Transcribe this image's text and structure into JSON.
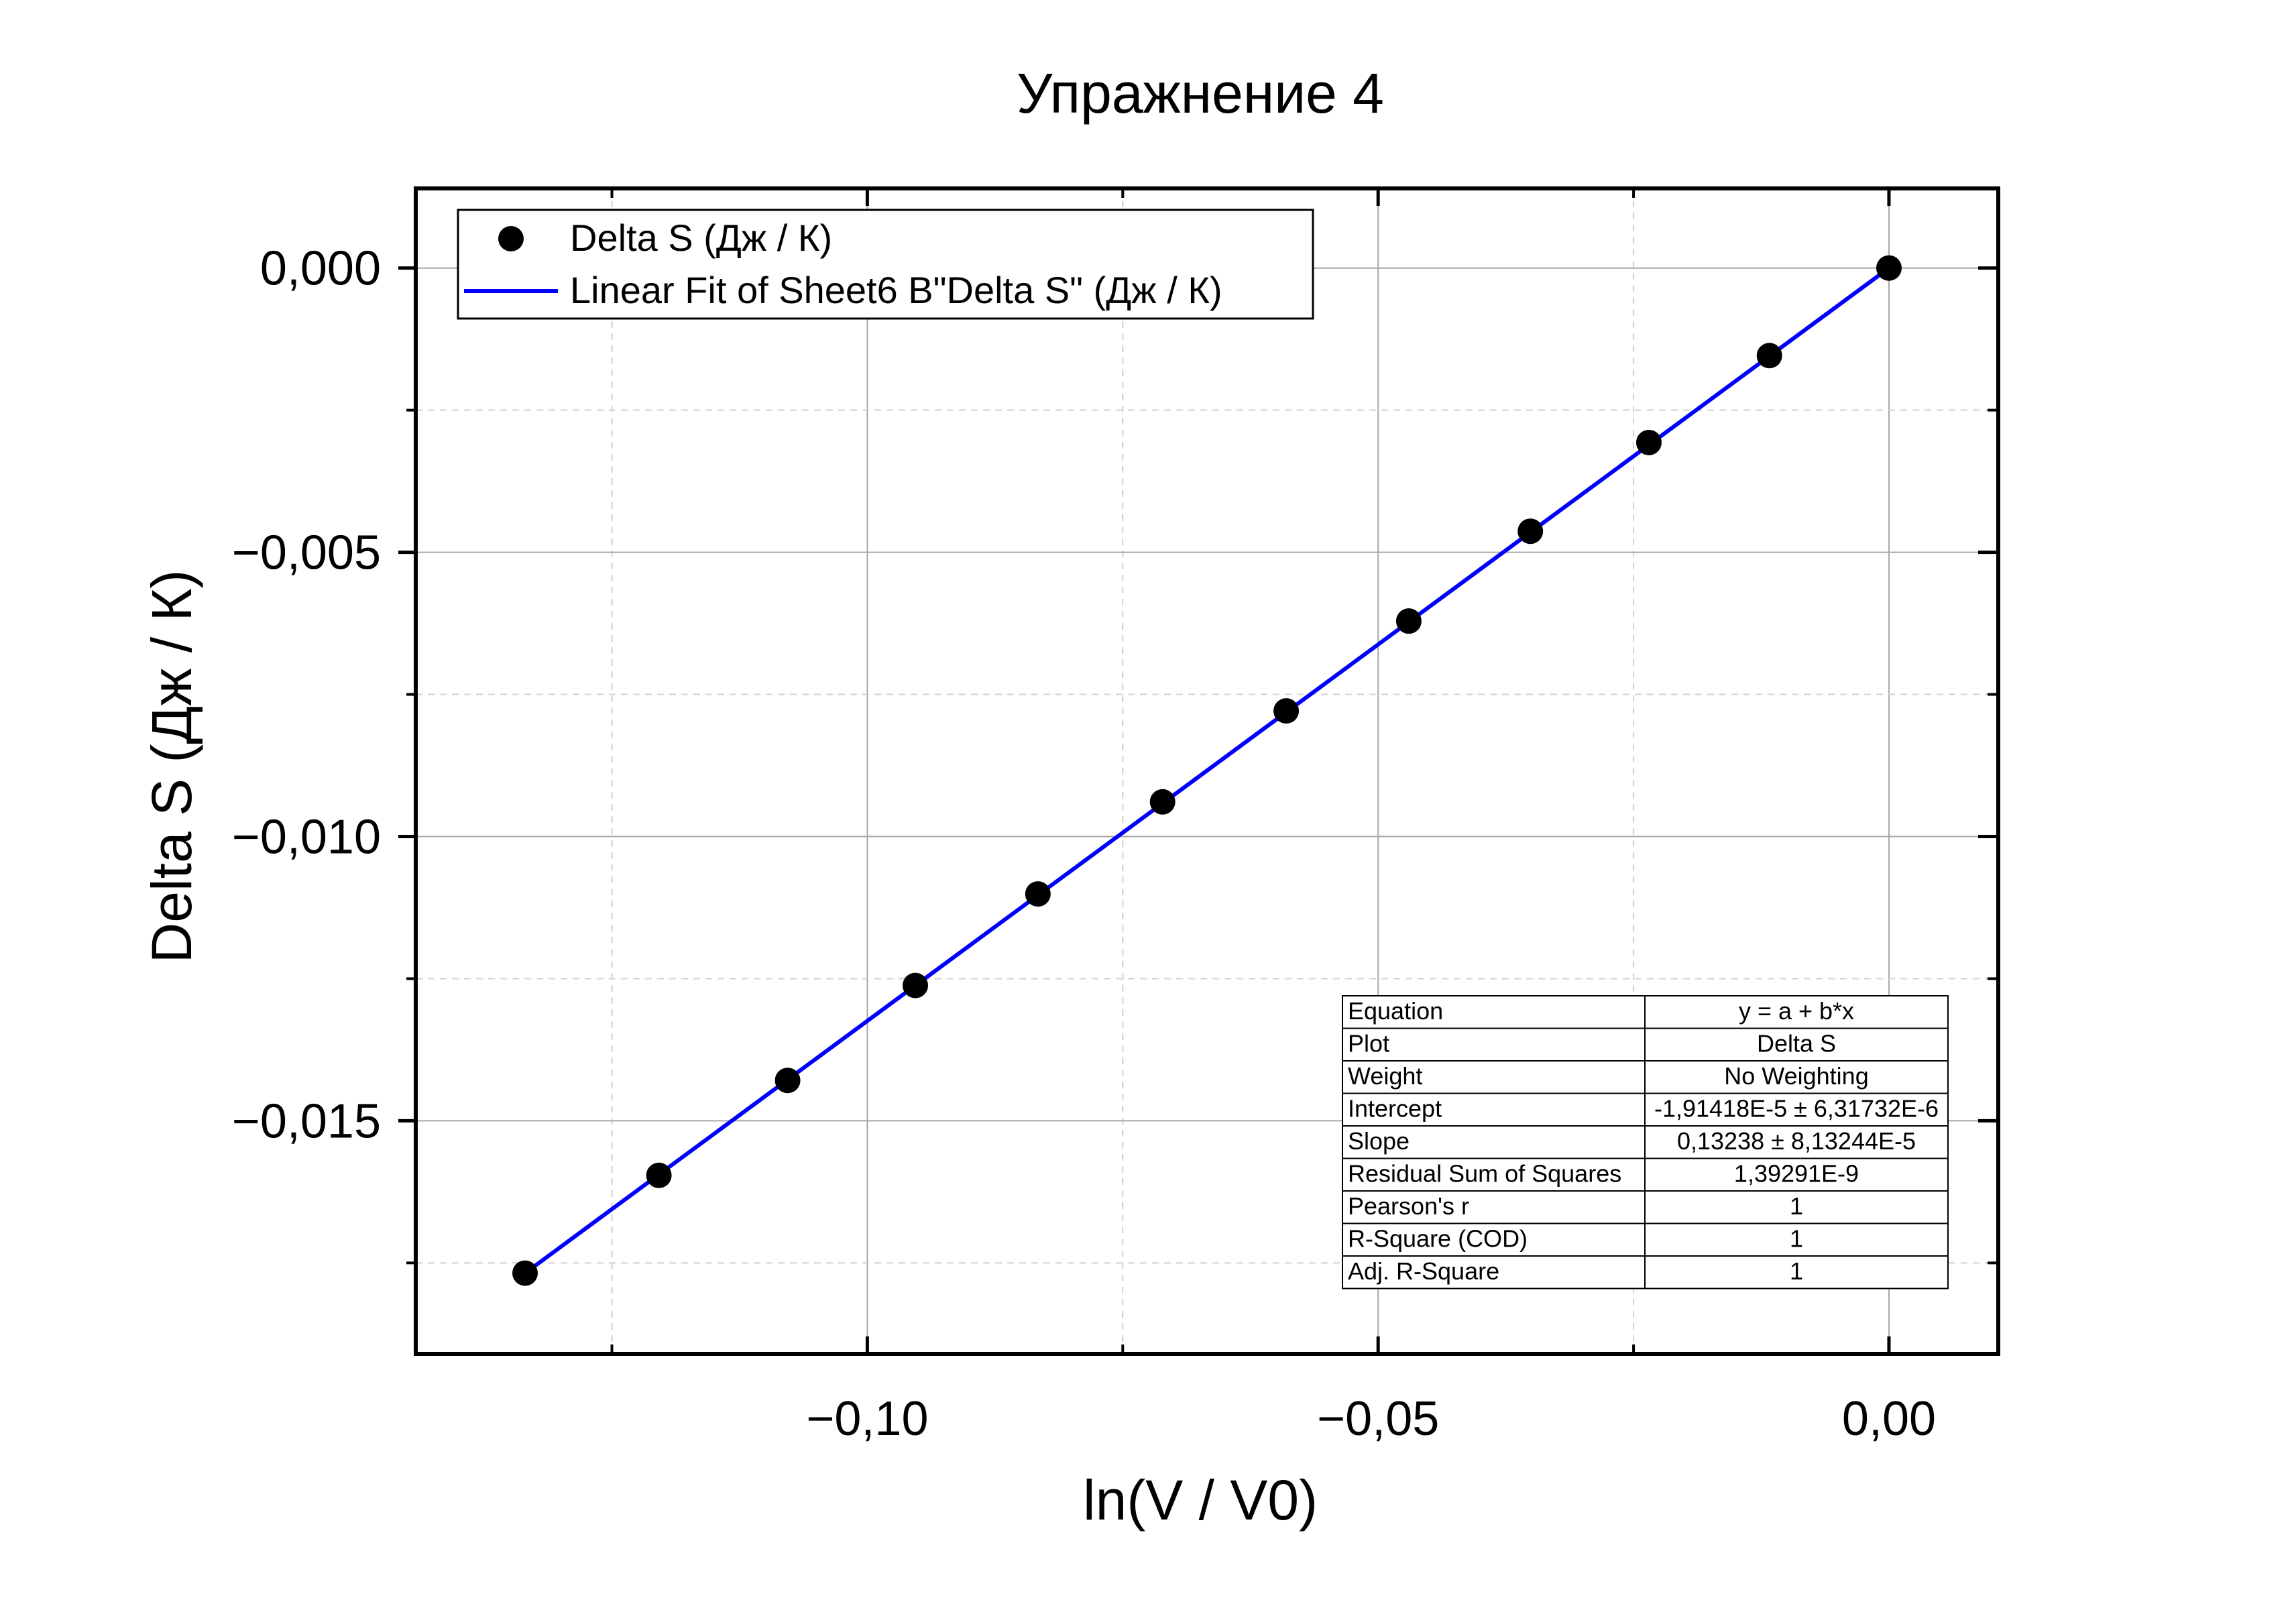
{
  "chart_data": {
    "type": "scatter",
    "title": "Упражнение 4",
    "xlabel": "ln(V / V0)",
    "ylabel": "Delta S (Дж / К)",
    "xlim": [
      -0.1442,
      0.0107
    ],
    "ylim": [
      -0.0191,
      0.0014
    ],
    "xticks": [
      -0.1,
      -0.05,
      0.0
    ],
    "xtick_labels": [
      "−0,10",
      "−0,05",
      "0,00"
    ],
    "xminor": [
      -0.125,
      -0.075,
      -0.025
    ],
    "yticks": [
      0.0,
      -0.005,
      -0.01,
      -0.015
    ],
    "ytick_labels": [
      "0,000",
      "−0,005",
      "−0,010",
      "−0,015"
    ],
    "yminor": [
      -0.0025,
      -0.0075,
      -0.0125,
      -0.0175
    ],
    "grid": true,
    "legend_position": "top-left",
    "series": [
      {
        "name": "Delta S (Дж / К)",
        "kind": "points",
        "color": "#000000",
        "x": [
          -0.1335,
          -0.1204,
          -0.1078,
          -0.0953,
          -0.0833,
          -0.0711,
          -0.059,
          -0.047,
          -0.0351,
          -0.0235,
          -0.0117,
          0.0
        ],
        "y": [
          -0.01768,
          -0.01596,
          -0.01429,
          -0.01262,
          -0.01101,
          -0.00939,
          -0.00779,
          -0.00621,
          -0.00463,
          -0.00307,
          -0.00154,
          0.0
        ]
      },
      {
        "name": "Linear Fit of Sheet6 B\"Delta S\" (Дж / К)",
        "kind": "line",
        "color": "#0000ff",
        "x": [
          -0.1335,
          0.0
        ],
        "y": [
          -0.01768,
          0.0
        ]
      }
    ],
    "fit_table": [
      {
        "label": "Equation",
        "value": "y = a + b*x"
      },
      {
        "label": "Plot",
        "value": "Delta S"
      },
      {
        "label": "Weight",
        "value": "No Weighting"
      },
      {
        "label": "Intercept",
        "value": "-1,91418E-5 ± 6,31732E-6"
      },
      {
        "label": "Slope",
        "value": "0,13238 ± 8,13244E-5"
      },
      {
        "label": "Residual Sum of Squares",
        "value": "1,39291E-9"
      },
      {
        "label": "Pearson's r",
        "value": "1"
      },
      {
        "label": "R-Square (COD)",
        "value": "1"
      },
      {
        "label": "Adj. R-Square",
        "value": "1"
      }
    ]
  }
}
